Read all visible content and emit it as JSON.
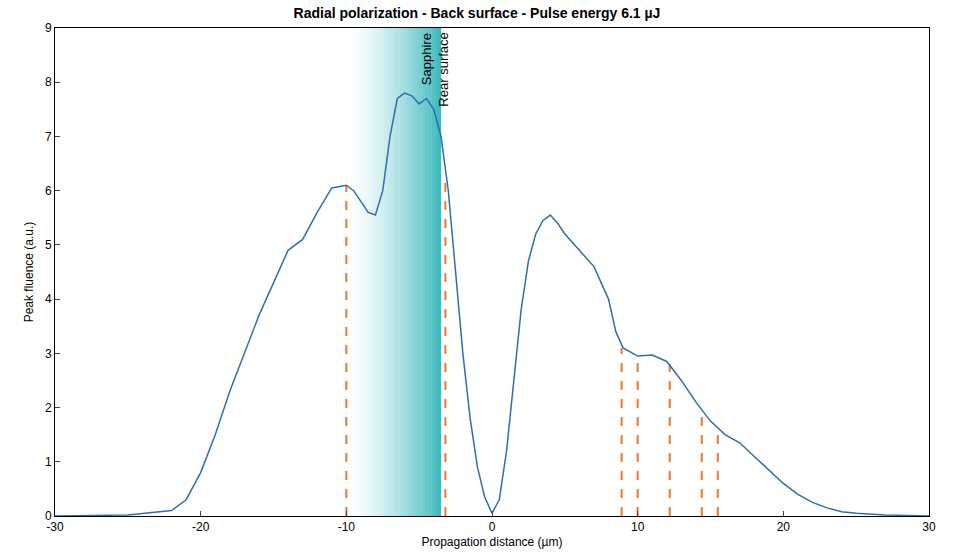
{
  "chart_data": {
    "type": "line",
    "title": "Radial polarization - Back surface - Pulse energy 6.1 µJ",
    "x_label": "Propagation distance (µm)",
    "y_label": "Peak fluence (a.u.)",
    "x": [
      -30,
      -25,
      -22,
      -21,
      -20,
      -19,
      -18,
      -17,
      -16,
      -15,
      -14,
      -13,
      -12,
      -11,
      -10,
      -9.5,
      -9,
      -8.5,
      -8,
      -7.5,
      -7,
      -6.5,
      -6,
      -5.5,
      -5,
      -4.5,
      -4,
      -3.5,
      -3,
      -2.5,
      -2,
      -1.5,
      -1,
      -0.5,
      0,
      0.5,
      1,
      1.5,
      2,
      2.5,
      3,
      3.5,
      4,
      4.5,
      5,
      6,
      7,
      8,
      8.5,
      9,
      10,
      11,
      12,
      13,
      14,
      15,
      16,
      17,
      18,
      19,
      20,
      21,
      22,
      23,
      24,
      25,
      27,
      30
    ],
    "series": [
      {
        "color": "#2f6db5",
        "values": [
          0,
          0.02,
          0.1,
          0.3,
          0.8,
          1.5,
          2.3,
          3.0,
          3.7,
          4.3,
          4.9,
          5.1,
          5.6,
          6.05,
          6.1,
          6.0,
          5.8,
          5.6,
          5.55,
          6.0,
          7.0,
          7.7,
          7.8,
          7.75,
          7.6,
          7.7,
          7.5,
          7.0,
          6.0,
          4.5,
          3.0,
          1.8,
          0.9,
          0.35,
          0.05,
          0.3,
          1.2,
          2.5,
          3.8,
          4.7,
          5.2,
          5.45,
          5.55,
          5.4,
          5.2,
          4.9,
          4.6,
          4.0,
          3.4,
          3.1,
          2.95,
          2.97,
          2.85,
          2.5,
          2.1,
          1.75,
          1.5,
          1.35,
          1.1,
          0.85,
          0.6,
          0.4,
          0.25,
          0.15,
          0.08,
          0.05,
          0.02,
          0
        ]
      }
    ],
    "xlim": [
      -30,
      30
    ],
    "xticks": [
      -30,
      -20,
      -10,
      0,
      10,
      20,
      30
    ],
    "ylim": [
      0,
      9
    ],
    "yticks": [
      0,
      1,
      2,
      3,
      4,
      5,
      6,
      7,
      8,
      9
    ],
    "grid": false,
    "dashed_lines": {
      "color": "#ea7a2c",
      "x": [
        -10,
        -3.2,
        8.9,
        10,
        12.2,
        14.4,
        15.5
      ],
      "heights": [
        6.1,
        6.3,
        3.1,
        2.95,
        2.8,
        1.9,
        1.6
      ]
    },
    "shaded_region": {
      "color": "#2ab3b6",
      "x": [
        -10,
        -3.5
      ]
    },
    "annotations": [
      {
        "text": "Sapphire",
        "x": -4.5,
        "y": 8.95
      },
      {
        "text": "Rear surface",
        "x": -3.3,
        "y": 8.95
      }
    ]
  }
}
